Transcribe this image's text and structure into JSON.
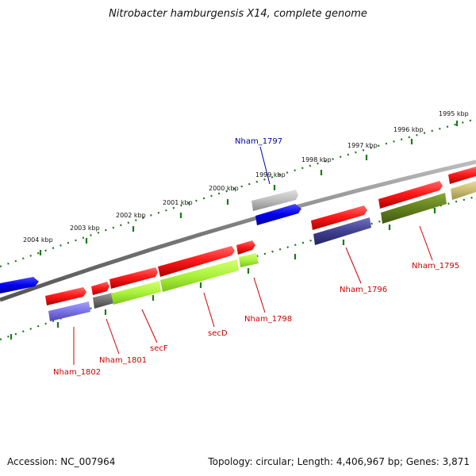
{
  "title": "Nitrobacter hamburgensis X14, complete genome",
  "footer": {
    "accession": "Accession: NC_007964",
    "stats": "Topology: circular; Length: 4,406,967 bp; Genes: 3,871"
  },
  "colors": {
    "backbone": "#888888",
    "scale_dots": "#1a7a1a",
    "label_red": "#cc0000",
    "label_blue": "#0000aa"
  },
  "scale_labels": [
    "1995 kbp",
    "1996 kbp",
    "1997 kbp",
    "1998 kbp",
    "1999 kbp",
    "2000 kbp",
    "2001 kbp",
    "2002 kbp",
    "2003 kbp",
    "2004 kbp"
  ],
  "gene_labels": [
    "Nham_1797",
    "Nham_1795",
    "Nham_1796",
    "Nham_1798",
    "secD",
    "secF",
    "Nham_1801",
    "Nham_1802"
  ]
}
